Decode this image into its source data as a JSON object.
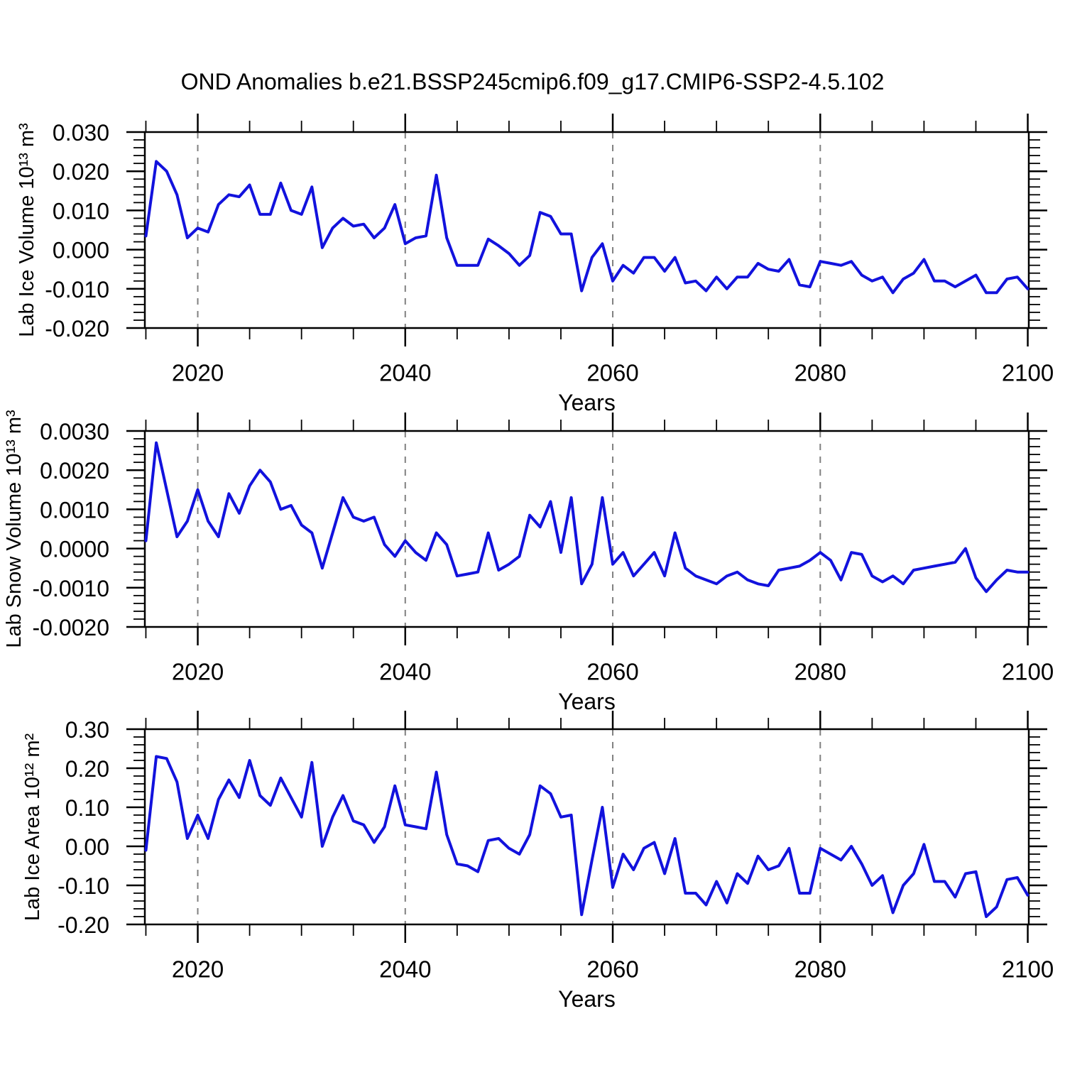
{
  "title": "OND Anomalies b.e21.BSSP245cmip6.f09_g17.CMIP6-SSP2-4.5.102",
  "colors": {
    "line": "#1212dd",
    "grid": "#808080",
    "axis": "#000000",
    "background": "#ffffff"
  },
  "x_axis": {
    "label": "Years",
    "tick_labels": [
      "2020",
      "2040",
      "2060",
      "2080",
      "2100"
    ],
    "tick_values": [
      2020,
      2040,
      2060,
      2080,
      2100
    ],
    "minor_tick_step_years": 5,
    "gridline_years": [
      2020,
      2040,
      2060,
      2080
    ],
    "range": [
      2015,
      2100
    ]
  },
  "chart_data": [
    {
      "type": "line",
      "name": "lab-ice-volume",
      "ylabel": "Lab Ice Volume 10¹³ m³",
      "ylim": [
        -0.02,
        0.03
      ],
      "ytick_labels": [
        "0.030",
        "0.020",
        "0.010",
        "0.000",
        "-0.010",
        "-0.020"
      ],
      "ytick_values": [
        0.03,
        0.02,
        0.01,
        0.0,
        -0.01,
        -0.02
      ],
      "y_minor_step": 0.002,
      "x_start_year": 2015,
      "values": [
        0.0035,
        0.0225,
        0.02,
        0.014,
        0.003,
        0.0055,
        0.0045,
        0.0115,
        0.014,
        0.0135,
        0.0165,
        0.009,
        0.009,
        0.017,
        0.01,
        0.009,
        0.016,
        0.0005,
        0.0055,
        0.008,
        0.006,
        0.0065,
        0.003,
        0.0055,
        0.0115,
        0.0015,
        0.003,
        0.0035,
        0.019,
        0.003,
        -0.004,
        -0.004,
        -0.004,
        0.0027,
        0.001,
        -0.001,
        -0.004,
        -0.0015,
        0.0095,
        0.0085,
        0.004,
        0.004,
        -0.0105,
        -0.002,
        0.0015,
        -0.008,
        -0.004,
        -0.006,
        -0.002,
        -0.002,
        -0.0055,
        -0.002,
        -0.0085,
        -0.008,
        -0.0105,
        -0.007,
        -0.01,
        -0.007,
        -0.007,
        -0.0035,
        -0.005,
        -0.0055,
        -0.0025,
        -0.009,
        -0.0095,
        -0.003,
        -0.0035,
        -0.004,
        -0.003,
        -0.0065,
        -0.008,
        -0.007,
        -0.011,
        -0.0075,
        -0.006,
        -0.0025,
        -0.008,
        -0.008,
        -0.0095,
        -0.008,
        -0.0065,
        -0.011,
        -0.011,
        -0.0075,
        -0.007,
        -0.01
      ]
    },
    {
      "type": "line",
      "name": "lab-snow-volume",
      "ylabel": "Lab Snow Volume 10¹³ m³",
      "ylim": [
        -0.002,
        0.003
      ],
      "ytick_labels": [
        "0.0030",
        "0.0020",
        "0.0010",
        "0.0000",
        "-0.0010",
        "-0.0020"
      ],
      "ytick_values": [
        0.003,
        0.002,
        0.001,
        0.0,
        -0.001,
        -0.002
      ],
      "y_minor_step": 0.0002,
      "x_start_year": 2015,
      "values": [
        0.0002,
        0.0027,
        0.0015,
        0.0003,
        0.0007,
        0.0015,
        0.0007,
        0.0003,
        0.0014,
        0.0009,
        0.0016,
        0.002,
        0.0017,
        0.001,
        0.0011,
        0.0006,
        0.0004,
        -0.0005,
        0.0004,
        0.0013,
        0.0008,
        0.0007,
        0.0008,
        0.0001,
        -0.0002,
        0.0002,
        -0.0001,
        -0.0003,
        0.0004,
        0.0001,
        -0.0007,
        -0.00065,
        -0.0006,
        0.0004,
        -0.00055,
        -0.0004,
        -0.0002,
        0.00085,
        0.00055,
        0.0012,
        -0.0001,
        0.0013,
        -0.0009,
        -0.0004,
        0.0013,
        -0.0004,
        -0.0001,
        -0.0007,
        -0.0004,
        -0.0001,
        -0.0007,
        0.0004,
        -0.0005,
        -0.0007,
        -0.0008,
        -0.0009,
        -0.0007,
        -0.0006,
        -0.0008,
        -0.0009,
        -0.00095,
        -0.00055,
        -0.0005,
        -0.00045,
        -0.0003,
        -0.0001,
        -0.0003,
        -0.0008,
        -0.0001,
        -0.00015,
        -0.0007,
        -0.00085,
        -0.0007,
        -0.0009,
        -0.00055,
        -0.0005,
        -0.00045,
        -0.0004,
        -0.00035,
        0.0,
        -0.00075,
        -0.0011,
        -0.0008,
        -0.00055,
        -0.0006,
        -0.0006
      ]
    },
    {
      "type": "line",
      "name": "lab-ice-area",
      "ylabel": "Lab Ice Area 10¹² m²",
      "ylim": [
        -0.2,
        0.3
      ],
      "ytick_labels": [
        "0.30",
        "0.20",
        "0.10",
        "0.00",
        "-0.10",
        "-0.20"
      ],
      "ytick_values": [
        0.3,
        0.2,
        0.1,
        0.0,
        -0.1,
        -0.2
      ],
      "y_minor_step": 0.02,
      "x_start_year": 2015,
      "values": [
        -0.01,
        0.23,
        0.225,
        0.165,
        0.02,
        0.08,
        0.02,
        0.12,
        0.17,
        0.125,
        0.22,
        0.13,
        0.105,
        0.175,
        0.125,
        0.075,
        0.215,
        0.0,
        0.075,
        0.13,
        0.065,
        0.055,
        0.01,
        0.05,
        0.155,
        0.055,
        0.05,
        0.045,
        0.19,
        0.03,
        -0.045,
        -0.05,
        -0.065,
        0.015,
        0.02,
        -0.005,
        -0.02,
        0.03,
        0.155,
        0.135,
        0.075,
        0.08,
        -0.175,
        -0.035,
        0.1,
        -0.105,
        -0.02,
        -0.06,
        -0.005,
        0.01,
        -0.07,
        0.02,
        -0.12,
        -0.12,
        -0.15,
        -0.09,
        -0.145,
        -0.07,
        -0.095,
        -0.025,
        -0.06,
        -0.05,
        -0.005,
        -0.12,
        -0.12,
        -0.005,
        -0.02,
        -0.035,
        0.0,
        -0.045,
        -0.1,
        -0.075,
        -0.17,
        -0.1,
        -0.07,
        0.005,
        -0.09,
        -0.09,
        -0.13,
        -0.07,
        -0.065,
        -0.18,
        -0.155,
        -0.085,
        -0.08,
        -0.125
      ]
    }
  ]
}
